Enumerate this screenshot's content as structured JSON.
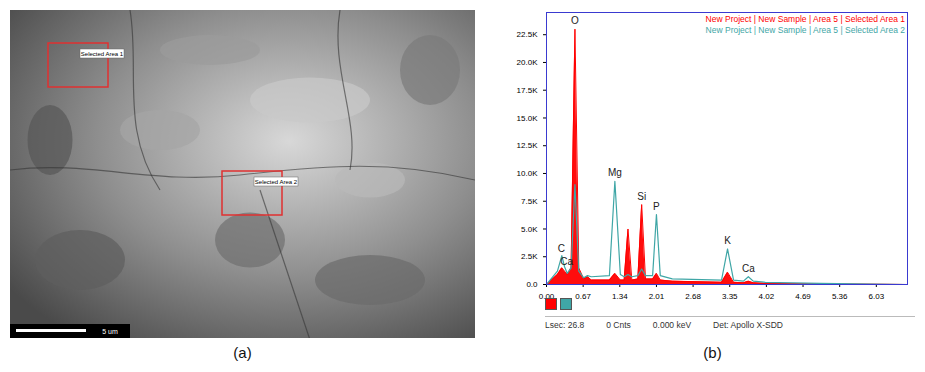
{
  "image_panel": {
    "caption": "(a)",
    "regions": [
      "Selected Area 1",
      "Selected Area 2"
    ],
    "scale_bar": "5 um"
  },
  "chart_data": {
    "type": "line",
    "caption": "(b)",
    "x": [
      0.0,
      0.2,
      0.28,
      0.33,
      0.38,
      0.45,
      0.52,
      0.59,
      0.68,
      0.75,
      0.82,
      1.15,
      1.25,
      1.35,
      1.42,
      1.49,
      1.56,
      1.67,
      1.74,
      1.81,
      1.94,
      2.01,
      2.08,
      2.3,
      3.2,
      3.31,
      3.42,
      3.6,
      3.69,
      3.78,
      4.0,
      5.0,
      6.6
    ],
    "series": [
      {
        "name": "New Project | New Sample | Area 5 | Selected Area 1",
        "color": "#ff0000",
        "type": "area",
        "values": [
          0,
          900,
          1500,
          1200,
          900,
          1500,
          23000,
          1500,
          500,
          700,
          400,
          400,
          1000,
          400,
          400,
          5000,
          400,
          500,
          7200,
          500,
          500,
          1000,
          400,
          300,
          200,
          1100,
          200,
          150,
          300,
          150,
          100,
          50,
          0
        ]
      },
      {
        "name": "New Project | New Sample | Area 5 | Selected Area 2",
        "color": "#3fa6a6",
        "type": "line",
        "values": [
          0,
          1200,
          2600,
          1600,
          1000,
          1500,
          9000,
          1200,
          600,
          800,
          700,
          800,
          9300,
          900,
          700,
          900,
          700,
          800,
          1400,
          800,
          800,
          6300,
          800,
          500,
          400,
          3200,
          400,
          300,
          700,
          300,
          200,
          100,
          0
        ]
      }
    ],
    "annotations": [
      {
        "text": "C",
        "x": 0.27,
        "y": 2700
      },
      {
        "text": "Ca",
        "x": 0.37,
        "y": 1500
      },
      {
        "text": "O",
        "x": 0.52,
        "y": 23200
      },
      {
        "text": "Mg",
        "x": 1.25,
        "y": 9500
      },
      {
        "text": "Si",
        "x": 1.74,
        "y": 7400
      },
      {
        "text": "P",
        "x": 2.01,
        "y": 6500
      },
      {
        "text": "K",
        "x": 3.31,
        "y": 3400
      },
      {
        "text": "Ca",
        "x": 3.69,
        "y": 900
      }
    ],
    "xlim": [
      0,
      6.6
    ],
    "xticks": [
      {
        "value": 0,
        "label": "0.00"
      },
      {
        "value": 0.67,
        "label": "0.67"
      },
      {
        "value": 1.34,
        "label": "1.34"
      },
      {
        "value": 2.01,
        "label": "2.01"
      },
      {
        "value": 2.68,
        "label": "2.68"
      },
      {
        "value": 3.35,
        "label": "3.35"
      },
      {
        "value": 4.02,
        "label": "4.02"
      },
      {
        "value": 4.69,
        "label": "4.69"
      },
      {
        "value": 5.36,
        "label": "5.36"
      },
      {
        "value": 6.03,
        "label": "6.03"
      }
    ],
    "ylim": [
      0,
      24500
    ],
    "yticks": [
      {
        "value": 0,
        "label": "0.0"
      },
      {
        "value": 2500,
        "label": "2.5K"
      },
      {
        "value": 5000,
        "label": "5.0K"
      },
      {
        "value": 7500,
        "label": "7.5K"
      },
      {
        "value": 10000,
        "label": "10.0K"
      },
      {
        "value": 12500,
        "label": "12.5K"
      },
      {
        "value": 15000,
        "label": "15.0K"
      },
      {
        "value": 17500,
        "label": "17.5K"
      },
      {
        "value": 20000,
        "label": "20.0K"
      },
      {
        "value": 22500,
        "label": "22.5K"
      }
    ],
    "grid": false,
    "legend": "top-right",
    "status_bar": [
      "Lsec: 26.8",
      "0 Cnts",
      "0.000 keV",
      "Det: Apollo X-SDD"
    ]
  }
}
